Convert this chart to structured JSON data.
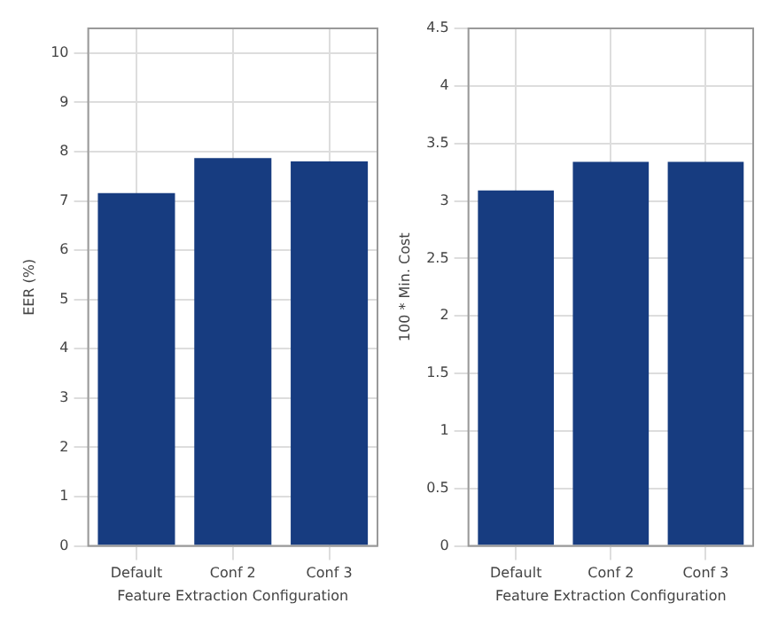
{
  "chart_data": [
    {
      "type": "bar",
      "xlabel": "Feature Extraction Configuration",
      "ylabel": "EER (%)",
      "categories": [
        "Default",
        "Conf 2",
        "Conf 3"
      ],
      "values": [
        7.16,
        7.87,
        7.8
      ],
      "color": "#173c80",
      "ylim": [
        0,
        10.5
      ],
      "yticks": [
        0,
        1,
        2,
        3,
        4,
        5,
        6,
        7,
        8,
        9,
        10
      ],
      "grid": true
    },
    {
      "type": "bar",
      "xlabel": "Feature Extraction Configuration",
      "ylabel": "100 * Min. Cost",
      "categories": [
        "Default",
        "Conf 2",
        "Conf 3"
      ],
      "values": [
        3.09,
        3.34,
        3.34
      ],
      "color": "#173c80",
      "ylim": [
        0,
        4.5
      ],
      "yticks": [
        0,
        0.5,
        1,
        1.5,
        2,
        2.5,
        3,
        3.5,
        4,
        4.5
      ],
      "grid": true
    }
  ]
}
